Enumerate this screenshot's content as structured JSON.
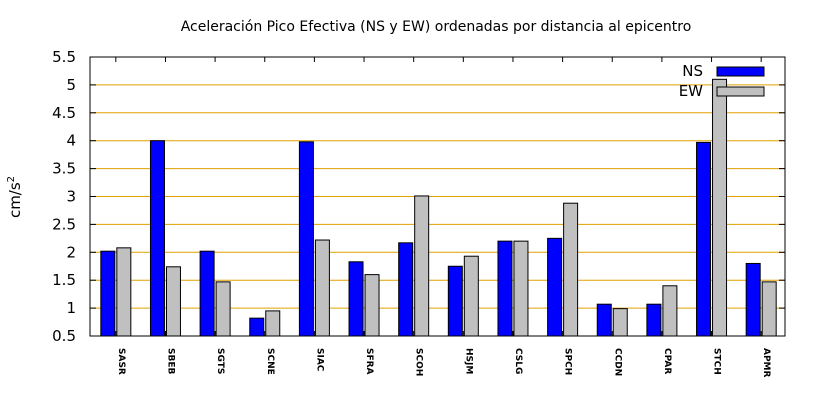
{
  "chart_data": {
    "type": "bar",
    "title": "Aceleración Pico Efectiva (NS y EW) ordenadas por distancia al epicentro",
    "xlabel": "",
    "ylabel": "cm/s",
    "ylabel_superscript": "2",
    "ylim": [
      0.5,
      5.5
    ],
    "yticks": [
      "0.5",
      "1",
      "1.5",
      "2",
      "2.5",
      "3",
      "3.5",
      "4",
      "4.5",
      "5",
      "5.5"
    ],
    "grid": true,
    "legend_position": "top-right",
    "categories": [
      "SASR",
      "SBEB",
      "SGTS",
      "SCNE",
      "SIAC",
      "SFRA",
      "SCOH",
      "HSJM",
      "CSLG",
      "SPCH",
      "CCDN",
      "CPAR",
      "STCH",
      "APMR"
    ],
    "series": [
      {
        "name": "NS",
        "color": "#0000ff",
        "values": [
          2.02,
          4.0,
          2.02,
          0.82,
          3.98,
          1.83,
          2.17,
          1.75,
          2.2,
          2.25,
          1.07,
          1.07,
          3.97,
          1.8
        ]
      },
      {
        "name": "EW",
        "color": "#c0c0c0",
        "values": [
          2.08,
          1.74,
          1.47,
          0.95,
          2.22,
          1.6,
          3.01,
          1.93,
          2.2,
          2.88,
          0.99,
          1.4,
          5.1,
          1.47
        ]
      }
    ],
    "colors": {
      "grid": "#e0a000",
      "axis": "#000000",
      "bar_edge": "#000000"
    }
  }
}
